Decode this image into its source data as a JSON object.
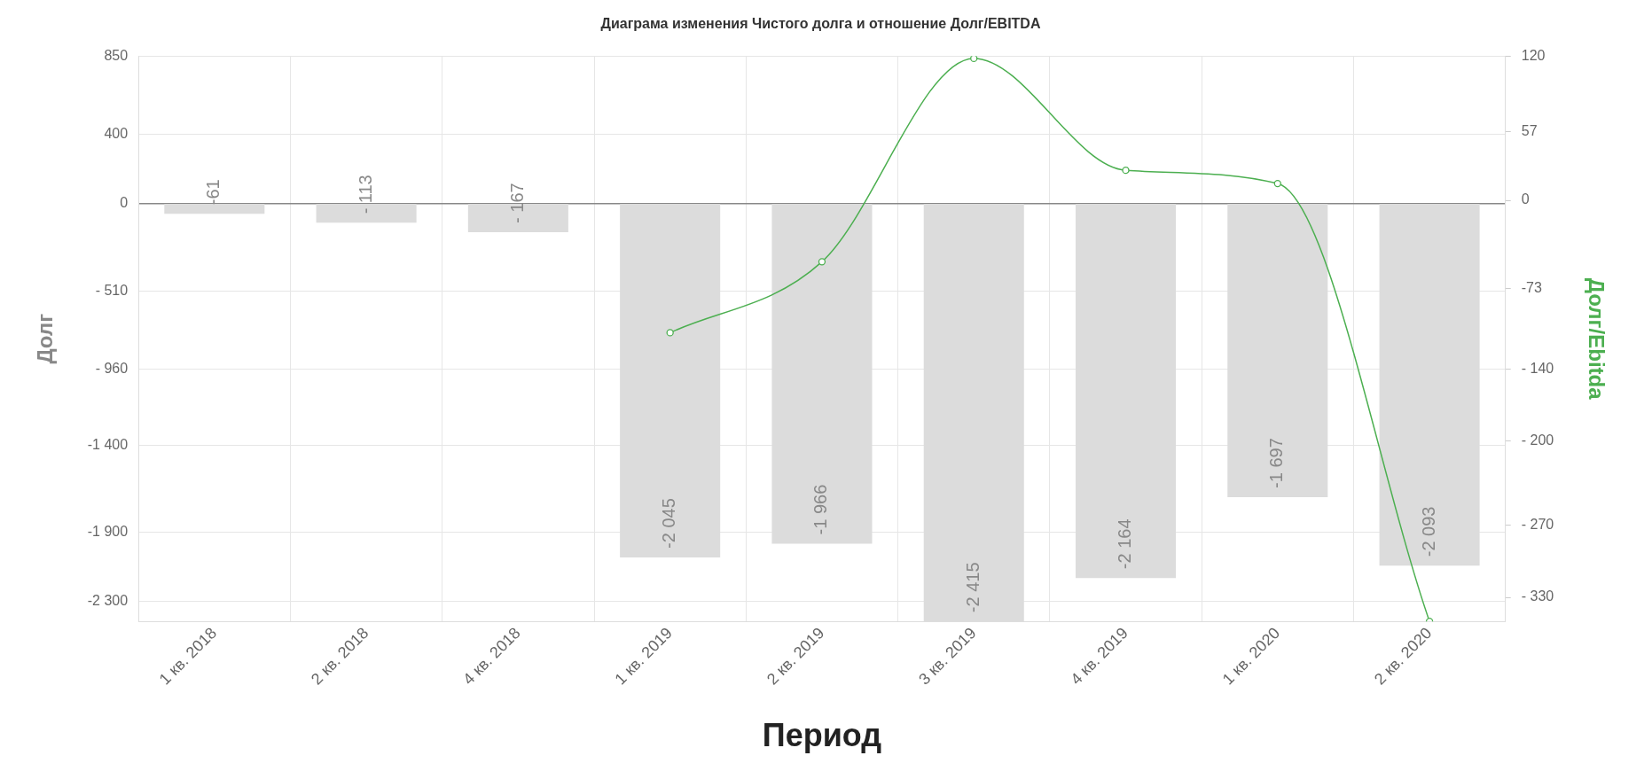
{
  "chart_data": {
    "type": "bar",
    "title": "Диаграма изменения Чистого долга и отношение Долг/EBITDA",
    "xlabel": "Период",
    "ylabel": "Долг",
    "y2label": "Долг/Ebitda",
    "categories": [
      "1 кв. 2018",
      "2 кв. 2018",
      "4 кв. 2018",
      "1 кв. 2019",
      "2 кв. 2019",
      "3 кв. 2019",
      "4 кв. 2019",
      "1 кв. 2020",
      "2 кв. 2020"
    ],
    "series": [
      {
        "color": "#dcdcdc",
        "values": [
          -61,
          -113,
          -167,
          -2045,
          -1966,
          -2415,
          -2164,
          -1697,
          -2093
        ],
        "value_labels": [
          "-61",
          "- 113",
          "- 167",
          "-2 045",
          "-1 966",
          "-2 415",
          "-2 164",
          "-1 697",
          "-2 093"
        ]
      },
      {
        "type": "line",
        "axis": "y2",
        "color": "#4caf50",
        "values": [
          null,
          null,
          null,
          -110,
          -51,
          118,
          25,
          14,
          -350
        ]
      }
    ],
    "ylim": [
      -2415,
      850
    ],
    "yticks": [
      850,
      400,
      0,
      {
        "value": -510,
        "label": "- 510"
      },
      {
        "value": -960,
        "label": "- 960"
      },
      {
        "value": -1400,
        "label": "-1 400"
      },
      {
        "value": -1900,
        "label": "-1 900"
      },
      {
        "value": -2300,
        "label": "-2 300"
      }
    ],
    "y2lim": [
      -350,
      120
    ],
    "y2ticks": [
      120,
      57,
      0,
      -73,
      {
        "value": -140,
        "label": "- 140"
      },
      {
        "value": -200,
        "label": "- 200"
      },
      {
        "value": -270,
        "label": "- 270"
      },
      {
        "value": -330,
        "label": "- 330"
      }
    ],
    "grid": true,
    "legend": false,
    "marker": "circle",
    "line_style": "solid"
  }
}
